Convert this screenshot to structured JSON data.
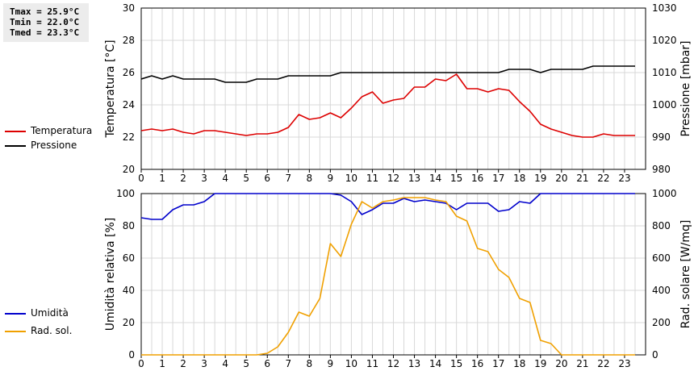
{
  "stats": {
    "tmax": "Tmax = 25.9°C",
    "tmin": "Tmin = 22.0°C",
    "tmed": "Tmed = 23.3°C"
  },
  "chart_data": [
    {
      "type": "line",
      "x_ticks": [
        "0",
        "1",
        "2",
        "3",
        "4",
        "5",
        "6",
        "7",
        "8",
        "9",
        "10",
        "11",
        "12",
        "13",
        "14",
        "15",
        "16",
        "17",
        "18",
        "19",
        "20",
        "21",
        "22",
        "23"
      ],
      "xlim": [
        0,
        24
      ],
      "ylabel": "Temperatura [°C]",
      "ylim": [
        20,
        30
      ],
      "y_ticks": [
        "20",
        "22",
        "24",
        "26",
        "28",
        "30"
      ],
      "y2label": "Pressione [mbar]",
      "y2lim": [
        980,
        1030
      ],
      "y2_ticks": [
        "980",
        "990",
        "1000",
        "1010",
        "1020",
        "1030"
      ],
      "grid": true,
      "series": [
        {
          "name": "Temperatura",
          "color": "#dd0000",
          "axis": "left",
          "x": [
            0,
            0.5,
            1,
            1.5,
            2,
            2.5,
            3,
            3.5,
            4,
            4.5,
            5,
            5.5,
            6,
            6.5,
            7,
            7.5,
            8,
            8.5,
            9,
            9.5,
            10,
            10.5,
            11,
            11.5,
            12,
            12.5,
            13,
            13.5,
            14,
            14.5,
            15,
            15.5,
            16,
            16.5,
            17,
            17.5,
            18,
            18.5,
            19,
            19.5,
            20,
            20.5,
            21,
            21.5,
            22,
            22.5,
            23,
            23.5
          ],
          "y": [
            22.4,
            22.5,
            22.4,
            22.5,
            22.3,
            22.2,
            22.4,
            22.4,
            22.3,
            22.2,
            22.1,
            22.2,
            22.2,
            22.3,
            22.6,
            23.4,
            23.1,
            23.2,
            23.5,
            23.2,
            23.8,
            24.5,
            24.8,
            24.1,
            24.3,
            24.4,
            25.1,
            25.1,
            25.6,
            25.5,
            25.9,
            25.0,
            25.0,
            24.8,
            25.0,
            24.9,
            24.2,
            23.6,
            22.8,
            22.5,
            22.3,
            22.1,
            22.0,
            22.0,
            22.2,
            22.1,
            22.1,
            22.1
          ]
        },
        {
          "name": "Pressione",
          "color": "#000000",
          "axis": "right",
          "x": [
            0,
            0.5,
            1,
            1.5,
            2,
            2.5,
            3,
            3.5,
            4,
            4.5,
            5,
            5.5,
            6,
            6.5,
            7,
            7.5,
            8,
            8.5,
            9,
            9.5,
            10,
            10.5,
            11,
            11.5,
            12,
            12.5,
            13,
            13.5,
            14,
            14.5,
            15,
            15.5,
            16,
            16.5,
            17,
            17.5,
            18,
            18.5,
            19,
            19.5,
            20,
            20.5,
            21,
            21.5,
            22,
            22.5,
            23,
            23.5
          ],
          "y": [
            1008,
            1009,
            1008,
            1009,
            1008,
            1008,
            1008,
            1008,
            1007,
            1007,
            1007,
            1008,
            1008,
            1008,
            1009,
            1009,
            1009,
            1009,
            1009,
            1010,
            1010,
            1010,
            1010,
            1010,
            1010,
            1010,
            1010,
            1010,
            1010,
            1010,
            1010,
            1010,
            1010,
            1010,
            1010,
            1011,
            1011,
            1011,
            1010,
            1011,
            1011,
            1011,
            1011,
            1012,
            1012,
            1012,
            1012,
            1012
          ]
        }
      ]
    },
    {
      "type": "line",
      "x_ticks": [
        "0",
        "1",
        "2",
        "3",
        "4",
        "5",
        "6",
        "7",
        "8",
        "9",
        "10",
        "11",
        "12",
        "13",
        "14",
        "15",
        "16",
        "17",
        "18",
        "19",
        "20",
        "21",
        "22",
        "23"
      ],
      "xlim": [
        0,
        24
      ],
      "ylabel": "Umidità relativa [%]",
      "ylim": [
        0,
        100
      ],
      "y_ticks": [
        "0",
        "20",
        "40",
        "60",
        "80",
        "100"
      ],
      "y2label": "Rad. solare [W/mq]",
      "y2lim": [
        0,
        1000
      ],
      "y2_ticks": [
        "0",
        "200",
        "400",
        "600",
        "800",
        "1000"
      ],
      "grid": true,
      "series": [
        {
          "name": "Umidità",
          "color": "#0000cc",
          "axis": "left",
          "x": [
            0,
            0.5,
            1,
            1.5,
            2,
            2.5,
            3,
            3.5,
            4,
            4.5,
            5,
            5.5,
            6,
            6.5,
            7,
            7.5,
            8,
            8.5,
            9,
            9.5,
            10,
            10.5,
            11,
            11.5,
            12,
            12.5,
            13,
            13.5,
            14,
            14.5,
            15,
            15.5,
            16,
            16.5,
            17,
            17.5,
            18,
            18.5,
            19,
            19.5,
            20,
            20.5,
            21,
            21.5,
            22,
            22.5,
            23,
            23.5
          ],
          "y": [
            85,
            84,
            84,
            90,
            93,
            93,
            95,
            100,
            100,
            100,
            100,
            100,
            100,
            100,
            100,
            100,
            100,
            100,
            100,
            99,
            95,
            87,
            90,
            94,
            94,
            97,
            95,
            96,
            95,
            94,
            90,
            94,
            94,
            94,
            89,
            90,
            95,
            94,
            100,
            100,
            100,
            100,
            100,
            100,
            100,
            100,
            100,
            100
          ]
        },
        {
          "name": "Rad. sol.",
          "color": "#f0a000",
          "axis": "right",
          "x": [
            0,
            0.5,
            1,
            1.5,
            2,
            2.5,
            3,
            3.5,
            4,
            4.5,
            5,
            5.5,
            6,
            6.5,
            7,
            7.5,
            8,
            8.5,
            9,
            9.5,
            10,
            10.5,
            11,
            11.5,
            12,
            12.5,
            13,
            13.5,
            14,
            14.5,
            15,
            15.5,
            16,
            16.5,
            17,
            17.5,
            18,
            18.5,
            19,
            19.5,
            20,
            20.5,
            21,
            21.5,
            22,
            22.5,
            23,
            23.5
          ],
          "y": [
            0,
            0,
            0,
            0,
            0,
            0,
            0,
            0,
            0,
            0,
            0,
            0,
            10,
            50,
            140,
            265,
            240,
            350,
            690,
            610,
            810,
            950,
            910,
            950,
            960,
            975,
            975,
            975,
            960,
            950,
            860,
            830,
            660,
            640,
            530,
            480,
            350,
            325,
            90,
            70,
            0,
            0,
            0,
            0,
            0,
            0,
            0,
            0
          ]
        }
      ]
    }
  ]
}
